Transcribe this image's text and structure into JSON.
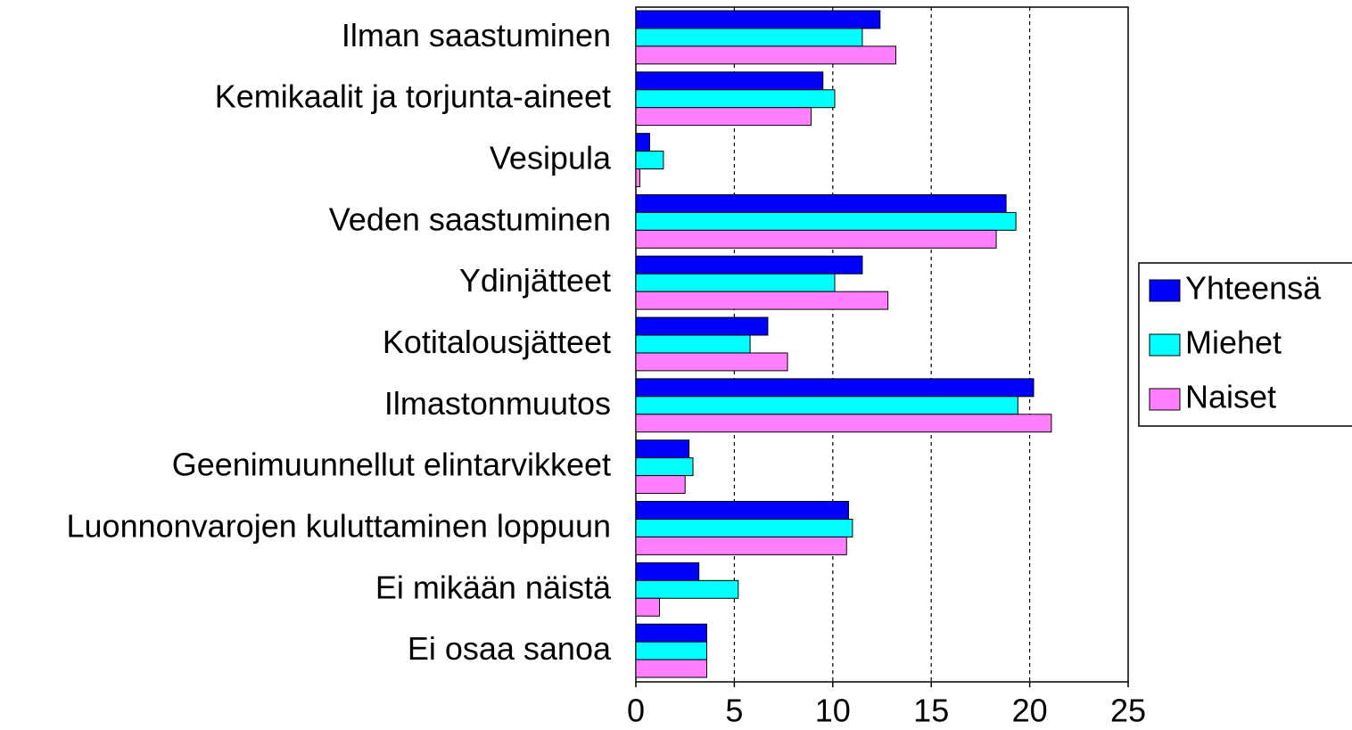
{
  "chart_data": {
    "type": "bar",
    "orientation": "horizontal",
    "categories": [
      "Ilman saastuminen",
      "Kemikaalit ja torjunta-aineet",
      "Vesipula",
      "Veden saastuminen",
      "Ydinjätteet",
      "Kotitalousjätteet",
      "Ilmastonmuutos",
      "Geenimuunnellut elintarvikkeet",
      "Luonnonvarojen kuluttaminen loppuun",
      "Ei mikään näistä",
      "Ei osaa sanoa"
    ],
    "series": [
      {
        "name": "Yhteensä",
        "color": "#0000ff",
        "values": [
          12.4,
          9.5,
          0.7,
          18.8,
          11.5,
          6.7,
          20.2,
          2.7,
          10.8,
          3.2,
          3.6
        ]
      },
      {
        "name": "Miehet",
        "color": "#00ffff",
        "values": [
          11.5,
          10.1,
          1.4,
          19.3,
          10.1,
          5.8,
          19.4,
          2.9,
          11.0,
          5.2,
          3.6
        ]
      },
      {
        "name": "Naiset",
        "color": "#ff80ff",
        "values": [
          13.2,
          8.9,
          0.2,
          18.3,
          12.8,
          7.7,
          21.1,
          2.5,
          10.7,
          1.2,
          3.6
        ]
      }
    ],
    "xlim": [
      0,
      25
    ],
    "xticks": [
      0,
      5,
      10,
      15,
      20,
      25
    ],
    "grid": true,
    "legend": "right"
  }
}
